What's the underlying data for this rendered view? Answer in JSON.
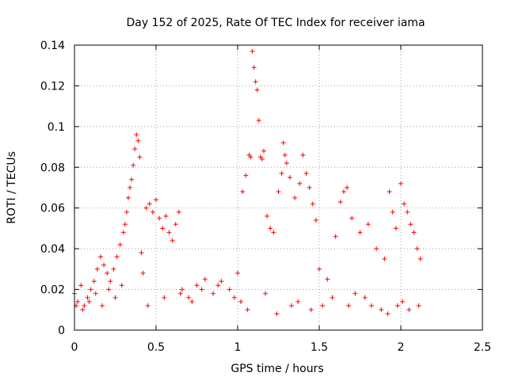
{
  "chart_data": {
    "type": "scatter",
    "title": "Day 152 of 2025, Rate Of TEC Index for receiver iama",
    "xlabel": "GPS time / hours",
    "ylabel": "ROTI / TECUs",
    "xlim": [
      0,
      2.5
    ],
    "ylim": [
      0,
      0.14
    ],
    "xticks": [
      "0",
      "0.5",
      "1",
      "1.5",
      "2",
      "2.5"
    ],
    "yticks": [
      "0",
      "0.02",
      "0.04",
      "0.06",
      "0.08",
      "0.1",
      "0.12",
      "0.14"
    ],
    "grid": true,
    "marker": "+",
    "color": "#ff0000",
    "series": [
      {
        "name": "ROTI",
        "x": [
          0.0,
          0.02,
          0.04,
          0.06,
          0.08,
          0.1,
          0.12,
          0.14,
          0.16,
          0.18,
          0.2,
          0.22,
          0.24,
          0.26,
          0.28,
          0.3,
          0.31,
          0.32,
          0.33,
          0.34,
          0.35,
          0.36,
          0.37,
          0.38,
          0.39,
          0.4,
          0.41,
          0.42,
          0.44,
          0.46,
          0.48,
          0.5,
          0.52,
          0.54,
          0.56,
          0.58,
          0.6,
          0.62,
          0.64,
          0.66,
          0.7,
          0.75,
          0.8,
          0.85,
          0.9,
          0.95,
          1.0,
          1.03,
          1.05,
          1.07,
          1.08,
          1.09,
          1.1,
          1.11,
          1.12,
          1.13,
          1.14,
          1.15,
          1.16,
          1.18,
          1.2,
          1.22,
          1.25,
          1.27,
          1.28,
          1.29,
          1.3,
          1.32,
          1.35,
          1.38,
          1.4,
          1.42,
          1.44,
          1.46,
          1.48,
          1.5,
          1.55,
          1.6,
          1.63,
          1.65,
          1.67,
          1.7,
          1.75,
          1.8,
          1.85,
          1.9,
          1.93,
          1.95,
          1.97,
          2.0,
          2.02,
          2.04,
          2.06,
          2.08,
          2.1,
          2.12,
          0.01,
          0.05,
          0.09,
          0.13,
          0.17,
          0.21,
          0.25,
          0.29,
          0.45,
          0.55,
          0.65,
          0.72,
          0.78,
          0.88,
          0.98,
          1.02,
          1.06,
          1.17,
          1.24,
          1.33,
          1.37,
          1.45,
          1.52,
          1.58,
          1.68,
          1.72,
          1.78,
          1.82,
          1.88,
          1.92,
          1.98,
          2.01,
          2.05,
          2.11
        ],
        "y": [
          0.018,
          0.014,
          0.022,
          0.012,
          0.016,
          0.02,
          0.024,
          0.03,
          0.036,
          0.032,
          0.028,
          0.024,
          0.03,
          0.036,
          0.042,
          0.048,
          0.052,
          0.058,
          0.065,
          0.07,
          0.074,
          0.081,
          0.089,
          0.096,
          0.093,
          0.085,
          0.038,
          0.028,
          0.06,
          0.062,
          0.058,
          0.064,
          0.055,
          0.05,
          0.056,
          0.048,
          0.044,
          0.052,
          0.058,
          0.02,
          0.016,
          0.022,
          0.025,
          0.018,
          0.024,
          0.02,
          0.028,
          0.068,
          0.076,
          0.086,
          0.085,
          0.137,
          0.129,
          0.122,
          0.118,
          0.103,
          0.085,
          0.084,
          0.088,
          0.056,
          0.05,
          0.048,
          0.068,
          0.077,
          0.092,
          0.086,
          0.082,
          0.075,
          0.065,
          0.072,
          0.086,
          0.077,
          0.07,
          0.062,
          0.054,
          0.03,
          0.025,
          0.046,
          0.063,
          0.068,
          0.07,
          0.055,
          0.048,
          0.052,
          0.04,
          0.035,
          0.068,
          0.058,
          0.05,
          0.072,
          0.062,
          0.058,
          0.052,
          0.048,
          0.04,
          0.035,
          0.012,
          0.01,
          0.014,
          0.018,
          0.012,
          0.02,
          0.016,
          0.022,
          0.012,
          0.016,
          0.018,
          0.014,
          0.02,
          0.022,
          0.016,
          0.014,
          0.01,
          0.018,
          0.008,
          0.012,
          0.014,
          0.01,
          0.012,
          0.016,
          0.012,
          0.018,
          0.016,
          0.012,
          0.01,
          0.008,
          0.012,
          0.014,
          0.01,
          0.012
        ]
      }
    ]
  }
}
